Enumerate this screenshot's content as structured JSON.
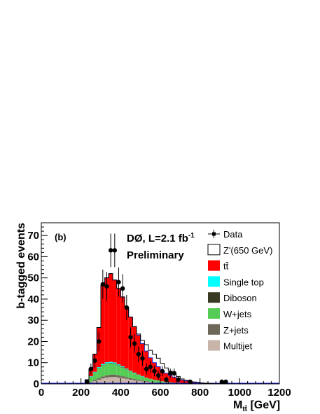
{
  "chart_data": {
    "type": "bar",
    "xlabel": "M",
    "xlabel_sub": "tt̄",
    "xlabel_unit": " [GeV]",
    "ylabel": "b-tagged events",
    "xlim": [
      0,
      1200
    ],
    "ylim": [
      0,
      76
    ],
    "x_ticks": [
      0,
      200,
      400,
      600,
      800,
      1000,
      1200
    ],
    "y_ticks": [
      0,
      10,
      20,
      30,
      40,
      50,
      60,
      70
    ],
    "panel_label": "(b)",
    "annotation": "DØ,  L=2.1 fb",
    "annotation_sup": "-1",
    "annotation2": "Preliminary",
    "bin_width": 20,
    "bin_low": [
      220,
      240,
      260,
      280,
      300,
      320,
      340,
      360,
      380,
      400,
      420,
      440,
      460,
      480,
      500,
      520,
      540,
      560,
      580,
      600,
      620,
      640,
      660,
      680,
      700,
      720,
      740,
      760,
      780,
      800,
      820,
      840,
      860,
      880,
      900,
      920,
      940
    ],
    "series": [
      {
        "name": "Multijet",
        "color": "#c8b4a8",
        "values": [
          0.3,
          0.8,
          1.3,
          2.0,
          2.6,
          3.0,
          3.2,
          3.3,
          3.0,
          2.7,
          2.4,
          2.0,
          1.7,
          1.4,
          1.2,
          1.0,
          0.8,
          0.6,
          0.5,
          0.4,
          0.3,
          0.3,
          0.2,
          0.2,
          0.1,
          0.1,
          0.1,
          0.1,
          0.1,
          0,
          0,
          0,
          0,
          0,
          0,
          0,
          0
        ]
      },
      {
        "name": "Z+jets",
        "color": "#6e6858",
        "values": [
          0.1,
          0.3,
          0.5,
          0.7,
          0.9,
          1.0,
          1.1,
          1.1,
          1.0,
          0.9,
          0.8,
          0.7,
          0.6,
          0.5,
          0.4,
          0.3,
          0.3,
          0.2,
          0.2,
          0.1,
          0.1,
          0.1,
          0.1,
          0.1,
          0,
          0,
          0,
          0,
          0,
          0,
          0,
          0,
          0,
          0,
          0,
          0,
          0
        ]
      },
      {
        "name": "W+jets",
        "color": "#55cc55",
        "values": [
          0.8,
          2.2,
          3.5,
          4.6,
          5.2,
          5.5,
          5.4,
          5.0,
          4.6,
          4.1,
          3.6,
          3.1,
          2.6,
          2.2,
          1.8,
          1.5,
          1.2,
          1.0,
          0.8,
          0.6,
          0.5,
          0.4,
          0.3,
          0.3,
          0.2,
          0.2,
          0.1,
          0.1,
          0.1,
          0.1,
          0,
          0,
          0,
          0,
          0,
          0,
          0
        ]
      },
      {
        "name": "Diboson",
        "color": "#3a3a22",
        "values": [
          0,
          0.1,
          0.1,
          0.2,
          0.2,
          0.2,
          0.2,
          0.2,
          0.2,
          0.2,
          0.1,
          0.1,
          0.1,
          0.1,
          0.1,
          0.1,
          0,
          0,
          0,
          0,
          0,
          0,
          0,
          0,
          0,
          0,
          0,
          0,
          0,
          0,
          0,
          0,
          0,
          0,
          0,
          0,
          0
        ]
      },
      {
        "name": "Single top",
        "color": "#00ffff",
        "values": [
          0,
          0.2,
          0.3,
          0.4,
          0.5,
          0.5,
          0.5,
          0.5,
          0.4,
          0.4,
          0.3,
          0.3,
          0.3,
          0.2,
          0.2,
          0.1,
          0.1,
          0.1,
          0.1,
          0.1,
          0,
          0,
          0,
          0,
          0,
          0,
          0,
          0,
          0,
          0,
          0,
          0,
          0,
          0,
          0,
          0,
          0
        ]
      },
      {
        "name": "tt̄",
        "color": "#ff0000",
        "values": [
          0.8,
          3.4,
          8.3,
          18.7,
          37.1,
          39.8,
          41.6,
          38.9,
          35.8,
          32.7,
          28.8,
          25.3,
          21.7,
          18.6,
          15.3,
          12.5,
          9.9,
          8.1,
          6.5,
          5.0,
          4.1,
          3.2,
          2.5,
          1.9,
          1.5,
          1.1,
          0.9,
          0.6,
          0.5,
          0.3,
          0.3,
          0.2,
          0.1,
          0.1,
          0.1,
          0.1,
          0
        ]
      },
      {
        "name": "Z'(650 GeV)",
        "color": "#ffffff",
        "values": [
          0,
          0,
          0,
          0,
          0,
          0,
          0,
          0,
          0,
          0,
          0,
          0,
          0,
          0.5,
          1.5,
          3.0,
          3.5,
          4.0,
          4.0,
          3.5,
          2.5,
          2.0,
          1.5,
          1.0,
          0.5,
          0.3,
          0.2,
          0.1,
          0,
          0,
          0,
          0,
          0,
          0,
          0,
          0,
          0
        ]
      }
    ],
    "data_points": [
      {
        "x": 230,
        "y": 1,
        "err": 1
      },
      {
        "x": 250,
        "y": 7,
        "err": 2.6
      },
      {
        "x": 270,
        "y": 11,
        "err": 3.3
      },
      {
        "x": 290,
        "y": 20,
        "err": 4.5
      },
      {
        "x": 310,
        "y": 47,
        "err": 6.9
      },
      {
        "x": 330,
        "y": 46,
        "err": 6.8
      },
      {
        "x": 350,
        "y": 63,
        "err": 7.9
      },
      {
        "x": 370,
        "y": 63,
        "err": 7.9
      },
      {
        "x": 390,
        "y": 48,
        "err": 6.9
      },
      {
        "x": 410,
        "y": 45,
        "err": 6.7
      },
      {
        "x": 430,
        "y": 36,
        "err": 6.0
      },
      {
        "x": 450,
        "y": 22,
        "err": 4.7
      },
      {
        "x": 470,
        "y": 19,
        "err": 4.4
      },
      {
        "x": 490,
        "y": 14,
        "err": 3.7
      },
      {
        "x": 510,
        "y": 12,
        "err": 3.5
      },
      {
        "x": 530,
        "y": 7,
        "err": 2.6
      },
      {
        "x": 550,
        "y": 8,
        "err": 2.8
      },
      {
        "x": 570,
        "y": 6,
        "err": 2.4
      },
      {
        "x": 590,
        "y": 4,
        "err": 2.0
      },
      {
        "x": 610,
        "y": 6,
        "err": 2.4
      },
      {
        "x": 630,
        "y": 2,
        "err": 1.4
      },
      {
        "x": 650,
        "y": 5,
        "err": 2.2
      },
      {
        "x": 670,
        "y": 5,
        "err": 2.2
      },
      {
        "x": 690,
        "y": 2,
        "err": 1.4
      },
      {
        "x": 750,
        "y": 1,
        "err": 1
      },
      {
        "x": 910,
        "y": 1,
        "err": 1
      },
      {
        "x": 930,
        "y": 1,
        "err": 1
      }
    ],
    "legend": [
      {
        "label": "Data",
        "kind": "marker"
      },
      {
        "label": "Z'(650 GeV)",
        "kind": "box",
        "color": "#ffffff"
      },
      {
        "label": "tt̄",
        "kind": "box",
        "color": "#ff0000"
      },
      {
        "label": "Single top",
        "kind": "box",
        "color": "#00ffff"
      },
      {
        "label": "Diboson",
        "kind": "box",
        "color": "#3a3a22"
      },
      {
        "label": "W+jets",
        "kind": "box",
        "color": "#55cc55"
      },
      {
        "label": "Z+jets",
        "kind": "box",
        "color": "#6e6858"
      },
      {
        "label": "Multijet",
        "kind": "box",
        "color": "#c8b4a8"
      }
    ],
    "legend_position": "right"
  }
}
